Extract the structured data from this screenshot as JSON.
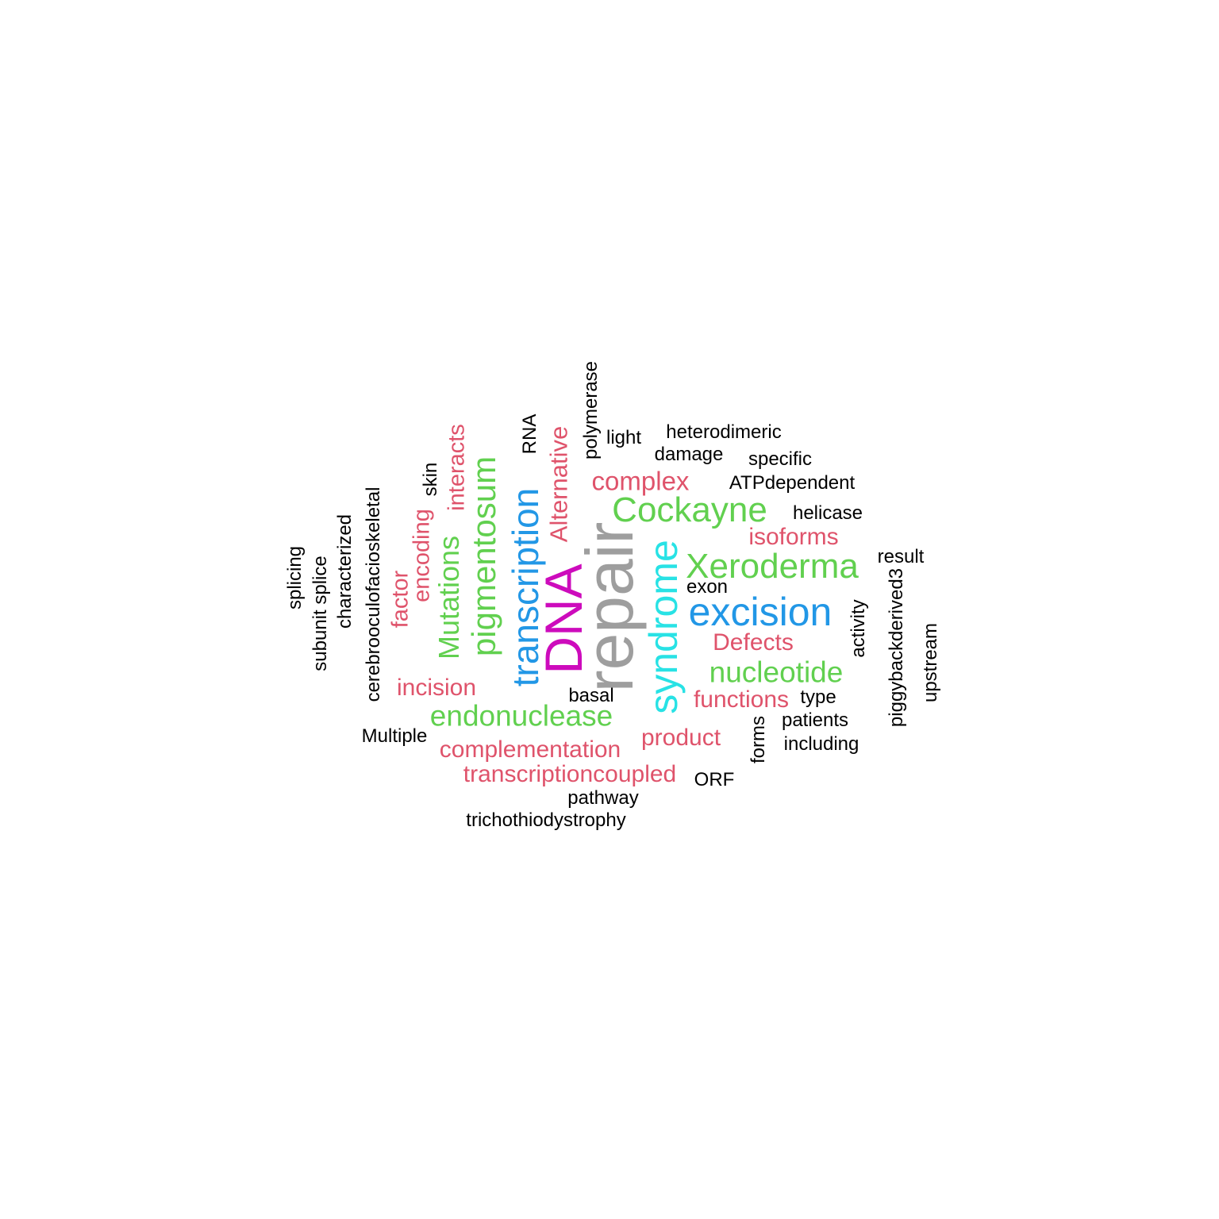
{
  "colors": {
    "black": "#000000",
    "red": "#df536b",
    "green": "#61d04f",
    "blue": "#2297e6",
    "cyan": "#28e2e5",
    "magenta": "#cd0bbc",
    "gray": "#9e9e9e"
  },
  "words": {
    "repair": "repair",
    "dna": "DNA",
    "syndrome": "syndrome",
    "transcription": "transcription",
    "excision": "excision",
    "xeroderma": "Xeroderma",
    "cockayne": "Cockayne",
    "pigmentosum": "pigmentosum",
    "mutations": "Mutations",
    "nucleotide": "nucleotide",
    "endonuclease": "endonuclease",
    "complex": "complex",
    "alternative": "Alternative",
    "interacts": "interacts",
    "encoding": "encoding",
    "factor": "factor",
    "incision": "incision",
    "complementation": "complementation",
    "transcriptioncoupled": "transcriptioncoupled",
    "product": "product",
    "functions": "functions",
    "defects": "Defects",
    "isoforms": "isoforms",
    "polymerase": "polymerase",
    "rna": "RNA",
    "light": "light",
    "heterodimeric": "heterodimeric",
    "damage": "damage",
    "specific": "specific",
    "atpdependent": "ATPdependent",
    "helicase": "helicase",
    "result": "result",
    "exon": "exon",
    "activity": "activity",
    "piggybackderived3": "piggybackderived3",
    "upstream": "upstream",
    "type": "type",
    "patients": "patients",
    "including": "including",
    "forms": "forms",
    "orf": "ORF",
    "basal": "basal",
    "pathway": "pathway",
    "trichothiodystrophy": "trichothiodystrophy",
    "multiple": "Multiple",
    "skin": "skin",
    "cerebrooculofacioskeletal": "cerebrooculofacioskeletal",
    "characterized": "characterized",
    "subunit_splice": "subunit splice",
    "splicing": "splicing"
  }
}
